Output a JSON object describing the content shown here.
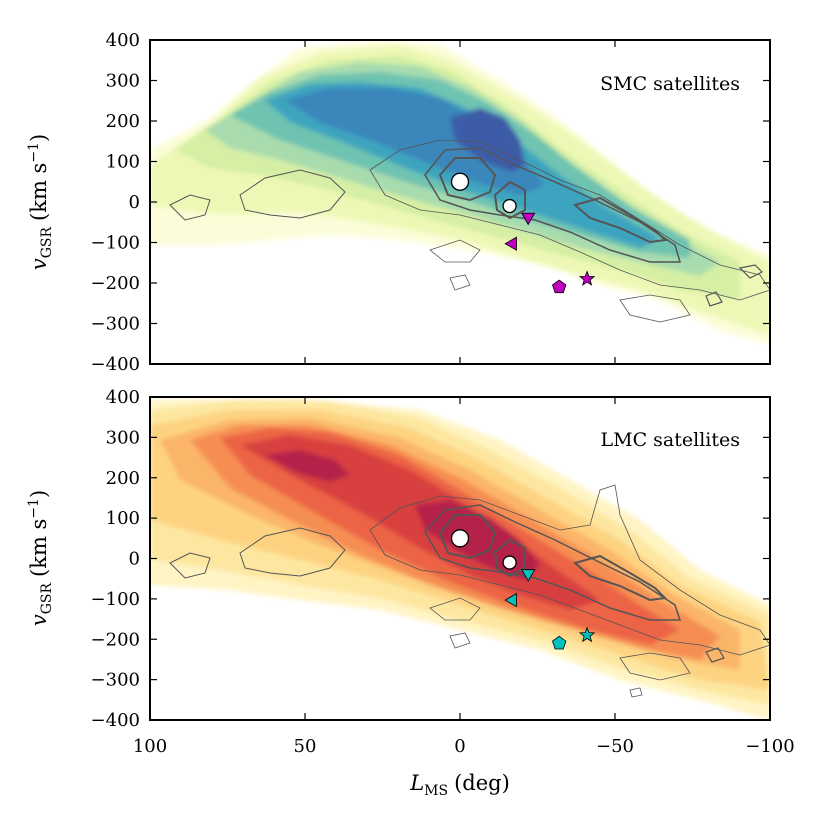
{
  "chart_data": [
    {
      "type": "contour",
      "panel": "top",
      "title": "SMC satellites",
      "ylabel": "v_GSR (km s^-1)",
      "ylabel_main": "v",
      "ylabel_sub": "GSR",
      "ylabel_units": "(km s",
      "ylabel_sup": "−1",
      "ylabel_close": ")",
      "xlim": [
        100,
        -100
      ],
      "ylim": [
        -400,
        400
      ],
      "yticks": [
        400,
        300,
        200,
        100,
        0,
        -100,
        -200,
        -300,
        -400
      ],
      "ytick_labels": [
        "400",
        "300",
        "200",
        "100",
        "0",
        "−100",
        "−200",
        "−300",
        "−400"
      ],
      "colormap": [
        "#fcfdd8",
        "#eef8b6",
        "#d5efa4",
        "#a8dcae",
        "#6ec3b1",
        "#3ea4bf",
        "#3b86bb",
        "#3d5ba8"
      ],
      "marker_color": "#bf00bf",
      "points": [
        {
          "name": "LMC",
          "x": 0,
          "y": 50,
          "shape": "circle-large",
          "color": "#ffffff"
        },
        {
          "name": "SMC",
          "x": -16,
          "y": -10,
          "shape": "circle-small",
          "color": "#ffffff"
        },
        {
          "name": "sat-down-triangle",
          "x": -22,
          "y": -37,
          "shape": "triangle-down"
        },
        {
          "name": "sat-left-triangle",
          "x": -17,
          "y": -103,
          "shape": "triangle-left"
        },
        {
          "name": "sat-pentagon",
          "x": -32,
          "y": -210,
          "shape": "pentagon"
        },
        {
          "name": "sat-star",
          "x": -41,
          "y": -190,
          "shape": "star"
        }
      ]
    },
    {
      "type": "contour",
      "panel": "bottom",
      "title": "LMC satellites",
      "ylabel": "v_GSR (km s^-1)",
      "ylabel_main": "v",
      "ylabel_sub": "GSR",
      "ylabel_units": "(km s",
      "ylabel_sup": "−1",
      "ylabel_close": ")",
      "xlabel": "L_MS (deg)",
      "xlabel_main": "L",
      "xlabel_sub": "MS",
      "xlabel_units": "(deg)",
      "xlim": [
        100,
        -100
      ],
      "ylim": [
        -400,
        400
      ],
      "xticks": [
        100,
        50,
        0,
        -50,
        -100
      ],
      "xtick_labels": [
        "100",
        "50",
        "0",
        "−50",
        "−100"
      ],
      "yticks": [
        400,
        300,
        200,
        100,
        0,
        -100,
        -200,
        -300,
        -400
      ],
      "ytick_labels": [
        "400",
        "300",
        "200",
        "100",
        "0",
        "−100",
        "−200",
        "−300",
        "−400"
      ],
      "colormap": [
        "#fff4c4",
        "#fde7a0",
        "#fdd382",
        "#fbb569",
        "#f68e52",
        "#ec6444",
        "#d8403f",
        "#b5204a"
      ],
      "marker_color": "#00c0c0",
      "points": [
        {
          "name": "LMC",
          "x": 0,
          "y": 50,
          "shape": "circle-large",
          "color": "#ffffff"
        },
        {
          "name": "SMC",
          "x": -16,
          "y": -10,
          "shape": "circle-small",
          "color": "#ffffff"
        },
        {
          "name": "sat-down-triangle",
          "x": -22,
          "y": -37,
          "shape": "triangle-down"
        },
        {
          "name": "sat-left-triangle",
          "x": -17,
          "y": -103,
          "shape": "triangle-left"
        },
        {
          "name": "sat-pentagon",
          "x": -32,
          "y": -210,
          "shape": "pentagon"
        },
        {
          "name": "sat-star",
          "x": -41,
          "y": -190,
          "shape": "star"
        }
      ]
    }
  ]
}
